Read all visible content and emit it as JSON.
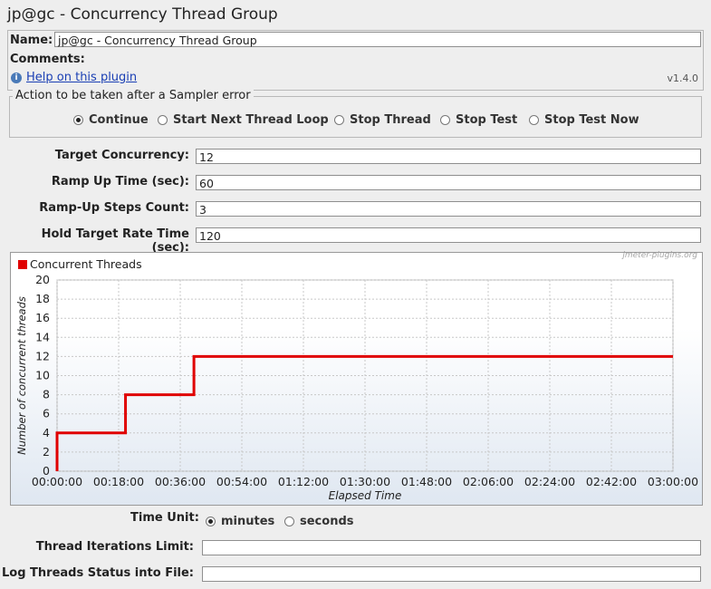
{
  "window": {
    "title": "jp@gc - Concurrency Thread Group"
  },
  "name_field": {
    "label": "Name:",
    "value": "jp@gc - Concurrency Thread Group"
  },
  "comments": {
    "label": "Comments:"
  },
  "help": {
    "link_text": "Help on this plugin",
    "version": "v1.4.0",
    "icon": "info-icon"
  },
  "sampler_error": {
    "legend": "Action to be taken after a Sampler error",
    "options": [
      "Continue",
      "Start Next Thread Loop",
      "Stop Thread",
      "Stop Test",
      "Stop Test Now"
    ],
    "selected": "Continue"
  },
  "params": {
    "target_concurrency": {
      "label": "Target Concurrency:",
      "value": "12"
    },
    "ramp_up_time": {
      "label": "Ramp Up Time (sec):",
      "value": "60"
    },
    "ramp_up_steps": {
      "label": "Ramp-Up Steps Count:",
      "value": "3"
    },
    "hold_time": {
      "label": "Hold Target Rate Time (sec):",
      "value": "120"
    }
  },
  "chart_data": {
    "type": "line",
    "watermark": "jmeter-plugins.org",
    "xlabel": "Elapsed Time",
    "ylabel": "Number of concurrent threads",
    "ylim": [
      0,
      20
    ],
    "xlim_sec": [
      0,
      10800
    ],
    "y_ticks": [
      "0",
      "2",
      "4",
      "6",
      "8",
      "10",
      "12",
      "14",
      "16",
      "18",
      "20"
    ],
    "x_ticks": [
      "00:00:00",
      "00:18:00",
      "00:36:00",
      "00:54:00",
      "01:12:00",
      "01:30:00",
      "01:48:00",
      "02:06:00",
      "02:24:00",
      "02:42:00",
      "03:00:00"
    ],
    "grid": true,
    "legend_position": "top-left",
    "series": [
      {
        "name": "Concurrent Threads",
        "color": "#e00000",
        "points": [
          {
            "x": "00:00:00",
            "y": 0
          },
          {
            "x": "00:00:00",
            "y": 4
          },
          {
            "x": "00:20:00",
            "y": 4
          },
          {
            "x": "00:20:00",
            "y": 8
          },
          {
            "x": "00:40:00",
            "y": 8
          },
          {
            "x": "00:40:00",
            "y": 12
          },
          {
            "x": "03:00:00",
            "y": 12
          }
        ]
      }
    ]
  },
  "time_unit": {
    "label": "Time Unit:",
    "options": [
      "minutes",
      "seconds"
    ],
    "selected": "minutes"
  },
  "thread_iterations": {
    "label": "Thread Iterations Limit:",
    "value": ""
  },
  "log_threads": {
    "label": "Log Threads Status into File:",
    "value": ""
  }
}
